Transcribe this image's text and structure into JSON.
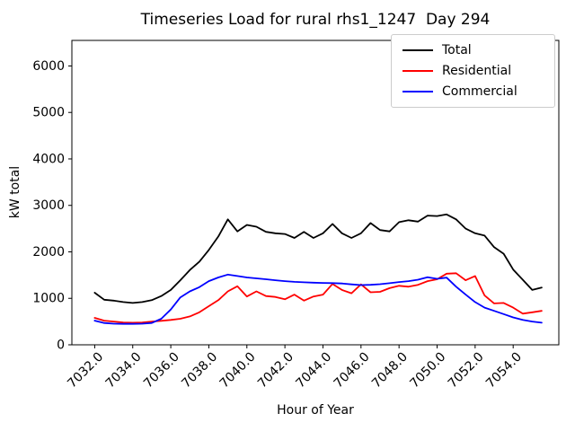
{
  "title": "Timeseries Load for rural rhs1_1247  Day 294",
  "chart_data": {
    "type": "line",
    "title": "Timeseries Load for rural rhs1_1247  Day 294",
    "xlabel": "Hour of Year",
    "ylabel": "kW total",
    "xlim": [
      7030.8,
      7056.4
    ],
    "ylim": [
      0,
      6550
    ],
    "grid": false,
    "legend_position": "upper right",
    "xticks": [
      7032,
      7034,
      7036,
      7038,
      7040,
      7042,
      7044,
      7046,
      7048,
      7050,
      7052,
      7054
    ],
    "xtick_labels": [
      "7032.0",
      "7034.0",
      "7036.0",
      "7038.0",
      "7040.0",
      "7042.0",
      "7044.0",
      "7046.0",
      "7048.0",
      "7050.0",
      "7052.0",
      "7054.0"
    ],
    "yticks": [
      0,
      1000,
      2000,
      3000,
      4000,
      5000,
      6000
    ],
    "ytick_labels": [
      "0",
      "1000",
      "2000",
      "3000",
      "4000",
      "5000",
      "6000"
    ],
    "x": [
      7032.0,
      7032.5,
      7033.0,
      7033.5,
      7034.0,
      7034.5,
      7035.0,
      7035.5,
      7036.0,
      7036.5,
      7037.0,
      7037.5,
      7038.0,
      7038.5,
      7039.0,
      7039.5,
      7040.0,
      7040.5,
      7041.0,
      7041.5,
      7042.0,
      7042.5,
      7043.0,
      7043.5,
      7044.0,
      7044.5,
      7045.0,
      7045.5,
      7046.0,
      7046.5,
      7047.0,
      7047.5,
      7048.0,
      7048.5,
      7049.0,
      7049.5,
      7050.0,
      7050.5,
      7051.0,
      7051.5,
      7052.0,
      7052.5,
      7053.0,
      7053.5,
      7054.0,
      7054.5,
      7055.0,
      7055.5
    ],
    "series": [
      {
        "name": "Total",
        "color": "#000000",
        "values": [
          1120,
          970,
          950,
          920,
          900,
          920,
          960,
          1050,
          1180,
          1390,
          1610,
          1790,
          2040,
          2330,
          2700,
          2440,
          2580,
          2540,
          2430,
          2400,
          2385,
          2300,
          2430,
          2300,
          2400,
          2600,
          2400,
          2300,
          2400,
          2620,
          2470,
          2440,
          2640,
          2680,
          2650,
          2780,
          2770,
          2805,
          2700,
          2500,
          2400,
          2350,
          2100,
          1960,
          1620,
          1400,
          1180,
          1230
        ]
      },
      {
        "name": "Residential",
        "color": "#ff0000",
        "values": [
          580,
          520,
          500,
          480,
          475,
          480,
          500,
          515,
          535,
          560,
          610,
          700,
          830,
          960,
          1150,
          1260,
          1040,
          1150,
          1050,
          1030,
          980,
          1080,
          950,
          1040,
          1080,
          1310,
          1180,
          1110,
          1300,
          1130,
          1140,
          1220,
          1270,
          1250,
          1290,
          1370,
          1410,
          1530,
          1540,
          1390,
          1480,
          1060,
          890,
          900,
          800,
          670,
          700,
          730
        ]
      },
      {
        "name": "Commercial",
        "color": "#0000ff",
        "values": [
          520,
          470,
          455,
          450,
          450,
          455,
          470,
          560,
          760,
          1020,
          1150,
          1240,
          1370,
          1450,
          1510,
          1480,
          1450,
          1430,
          1410,
          1390,
          1370,
          1355,
          1345,
          1338,
          1332,
          1328,
          1320,
          1300,
          1285,
          1290,
          1305,
          1325,
          1350,
          1370,
          1400,
          1455,
          1420,
          1445,
          1250,
          1080,
          920,
          800,
          730,
          660,
          590,
          535,
          500,
          475
        ]
      }
    ]
  }
}
